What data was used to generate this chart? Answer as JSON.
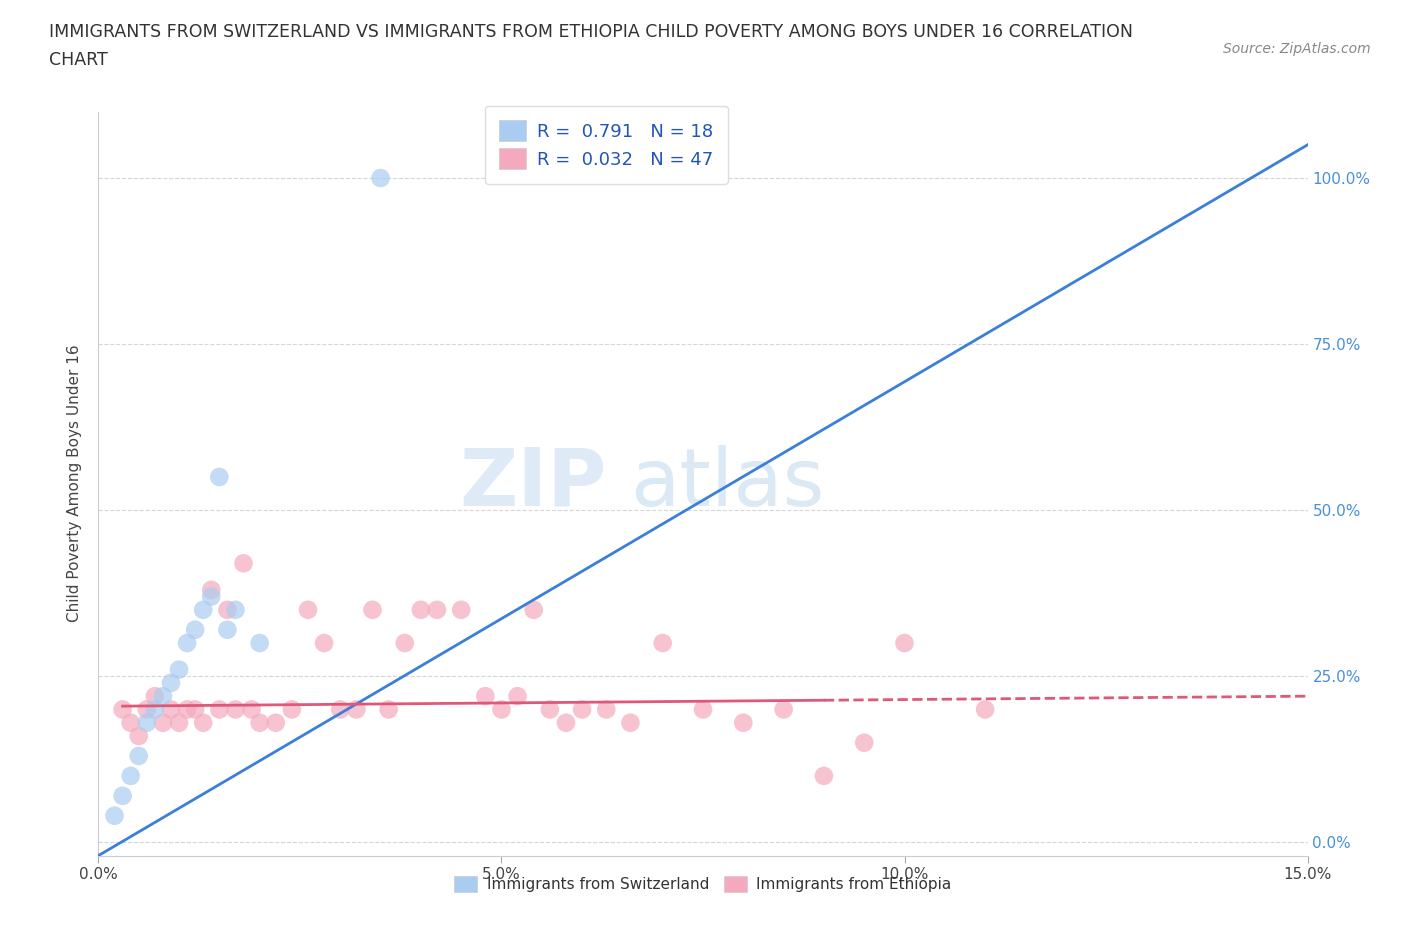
{
  "title_line1": "IMMIGRANTS FROM SWITZERLAND VS IMMIGRANTS FROM ETHIOPIA CHILD POVERTY AMONG BOYS UNDER 16 CORRELATION",
  "title_line2": "CHART",
  "source_text": "Source: ZipAtlas.com",
  "ylabel": "Child Poverty Among Boys Under 16",
  "xlim": [
    0.0,
    0.15
  ],
  "ylim": [
    -0.02,
    1.1
  ],
  "yticks": [
    0.0,
    0.25,
    0.5,
    0.75,
    1.0
  ],
  "ytick_labels": [
    "0.0%",
    "25.0%",
    "50.0%",
    "75.0%",
    "100.0%"
  ],
  "xticks": [
    0.0,
    0.05,
    0.1,
    0.15
  ],
  "xtick_labels": [
    "0.0%",
    "5.0%",
    "10.0%",
    "15.0%"
  ],
  "switzerland_color": "#aaccf0",
  "ethiopia_color": "#f4aabe",
  "trendline_switzerland_color": "#3a7fd9",
  "trendline_ethiopia_color": "#e05878",
  "R_switzerland": 0.791,
  "N_switzerland": 18,
  "R_ethiopia": 0.032,
  "N_ethiopia": 47,
  "watermark_zip": "ZIP",
  "watermark_atlas": "atlas",
  "background_color": "#ffffff",
  "legend_label_switzerland": "Immigrants from Switzerland",
  "legend_label_ethiopia": "Immigrants from Ethiopia",
  "swiss_x": [
    0.002,
    0.003,
    0.004,
    0.005,
    0.006,
    0.007,
    0.008,
    0.009,
    0.01,
    0.011,
    0.012,
    0.013,
    0.014,
    0.015,
    0.016,
    0.017,
    0.02,
    0.035
  ],
  "swiss_y": [
    0.04,
    0.07,
    0.1,
    0.13,
    0.18,
    0.2,
    0.22,
    0.24,
    0.26,
    0.3,
    0.32,
    0.35,
    0.37,
    0.55,
    0.32,
    0.35,
    0.3,
    1.0
  ],
  "ethiopia_x": [
    0.003,
    0.004,
    0.005,
    0.006,
    0.007,
    0.008,
    0.009,
    0.01,
    0.011,
    0.012,
    0.013,
    0.014,
    0.015,
    0.016,
    0.017,
    0.018,
    0.019,
    0.02,
    0.022,
    0.024,
    0.026,
    0.028,
    0.03,
    0.032,
    0.034,
    0.036,
    0.038,
    0.04,
    0.042,
    0.045,
    0.048,
    0.05,
    0.052,
    0.054,
    0.056,
    0.058,
    0.06,
    0.063,
    0.066,
    0.07,
    0.075,
    0.08,
    0.085,
    0.09,
    0.095,
    0.1,
    0.11
  ],
  "ethiopia_y": [
    0.2,
    0.18,
    0.16,
    0.2,
    0.22,
    0.18,
    0.2,
    0.18,
    0.2,
    0.2,
    0.18,
    0.38,
    0.2,
    0.35,
    0.2,
    0.42,
    0.2,
    0.18,
    0.18,
    0.2,
    0.35,
    0.3,
    0.2,
    0.2,
    0.35,
    0.2,
    0.3,
    0.35,
    0.35,
    0.35,
    0.22,
    0.2,
    0.22,
    0.35,
    0.2,
    0.18,
    0.2,
    0.2,
    0.18,
    0.3,
    0.2,
    0.18,
    0.2,
    0.1,
    0.15,
    0.3,
    0.2
  ],
  "swiss_trendline_x": [
    0.0,
    0.15
  ],
  "swiss_trendline_y": [
    -0.02,
    1.05
  ],
  "ethiopia_trendline_x": [
    0.003,
    0.15
  ],
  "ethiopia_trendline_y": [
    0.205,
    0.22
  ]
}
